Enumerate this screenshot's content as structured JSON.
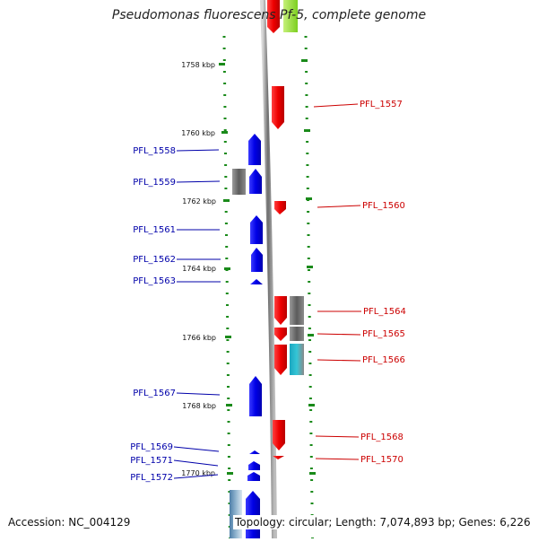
{
  "title": "Pseudomonas fluorescens Pf-5, complete genome",
  "accession_text": "Accession: NC_004129",
  "genome_info_text": "Topology: circular; Length: 7,074,893 bp; Genes: 6,226",
  "scale_labels": [
    "1758 kbp",
    "1760 kbp",
    "1762 kbp",
    "1764 kbp",
    "1766 kbp",
    "1768 kbp",
    "1770 kbp"
  ],
  "colors": {
    "forward_gene": "#0000ee",
    "reverse_gene": "#ee0000",
    "forward_label": "#0000aa",
    "reverse_label": "#cc0000",
    "tick": "#1a8a1a",
    "backbone": "#888888",
    "feature_gray": "#707070",
    "feature_cyan": "#20b8c8",
    "feature_green": "#99e033"
  },
  "forward_genes": [
    {
      "name": "PFL_1558"
    },
    {
      "name": "PFL_1559"
    },
    {
      "name": "PFL_1561"
    },
    {
      "name": "PFL_1562"
    },
    {
      "name": "PFL_1563"
    },
    {
      "name": "PFL_1567"
    },
    {
      "name": "PFL_1569"
    },
    {
      "name": "PFL_1571"
    },
    {
      "name": "PFL_1572"
    }
  ],
  "reverse_genes": [
    {
      "name": "PFL_1557"
    },
    {
      "name": "PFL_1560"
    },
    {
      "name": "PFL_1564"
    },
    {
      "name": "PFL_1565"
    },
    {
      "name": "PFL_1566"
    },
    {
      "name": "PFL_1568"
    },
    {
      "name": "PFL_1570"
    }
  ]
}
